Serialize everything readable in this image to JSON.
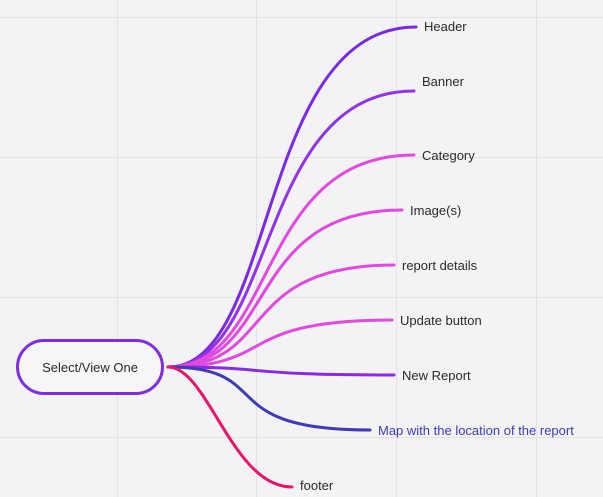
{
  "diagram": {
    "root": {
      "label": "Select/View One",
      "color": "#7f2de0"
    },
    "branches": [
      {
        "id": "header",
        "label": "Header",
        "color": "#7b2ae0"
      },
      {
        "id": "banner",
        "label": "Banner",
        "color": "#9133e6"
      },
      {
        "id": "category",
        "label": "Category",
        "color": "#e04ae0"
      },
      {
        "id": "images",
        "label": "Image(s)",
        "color": "#e04ae0"
      },
      {
        "id": "report-details",
        "label": "report details",
        "color": "#e04ae0"
      },
      {
        "id": "update-button",
        "label": "Update button",
        "color": "#e04ae0"
      },
      {
        "id": "new-report",
        "label": "New Report",
        "color": "#8a2be2"
      },
      {
        "id": "map",
        "label": "Map with the location of the report",
        "color": "#3e3bb5"
      },
      {
        "id": "footer",
        "label": "footer",
        "color": "#e8156b"
      }
    ]
  }
}
